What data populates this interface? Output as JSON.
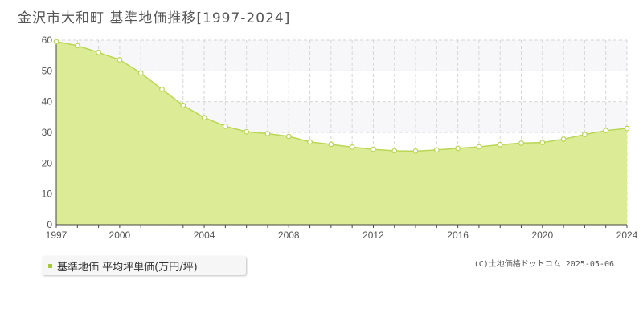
{
  "title": "金沢市大和町 基準地価推移[1997-2024]",
  "legend": {
    "label": "基準地価 平均坪単価(万円/坪)",
    "color": "#a8c83c"
  },
  "copyright": "(C)土地価格ドットコム 2025-05-06",
  "colors": {
    "fill": "#dcec96",
    "line": "#b9d654",
    "point_fill": "#ffffff",
    "band": "#f7f7f9",
    "grid": "#d6d6d6"
  },
  "chart_data": {
    "type": "area",
    "title": "金沢市大和町 基準地価推移[1997-2024]",
    "xlabel": "",
    "ylabel": "",
    "xlim": [
      1997,
      2024
    ],
    "ylim": [
      0,
      60
    ],
    "y_ticks": [
      0,
      10,
      20,
      30,
      40,
      50,
      60
    ],
    "x_tick_labels": [
      "1997",
      "2000",
      "2004",
      "2008",
      "2012",
      "2016",
      "2020",
      "2024"
    ],
    "grid": true,
    "legend_position": "bottom-left",
    "series": [
      {
        "name": "基準地価 平均坪単価(万円/坪)",
        "x": [
          1997,
          1998,
          1999,
          2000,
          2001,
          2002,
          2003,
          2004,
          2005,
          2006,
          2007,
          2008,
          2009,
          2010,
          2011,
          2012,
          2013,
          2014,
          2015,
          2016,
          2017,
          2018,
          2019,
          2020,
          2021,
          2022,
          2023,
          2024
        ],
        "values": [
          59.5,
          58.2,
          56.0,
          53.6,
          49.3,
          44.0,
          38.8,
          34.8,
          32.0,
          30.2,
          29.6,
          28.7,
          26.9,
          26.1,
          25.2,
          24.5,
          24.0,
          23.9,
          24.3,
          24.8,
          25.3,
          26.0,
          26.5,
          26.7,
          27.8,
          29.3,
          30.6,
          31.3
        ]
      }
    ]
  }
}
